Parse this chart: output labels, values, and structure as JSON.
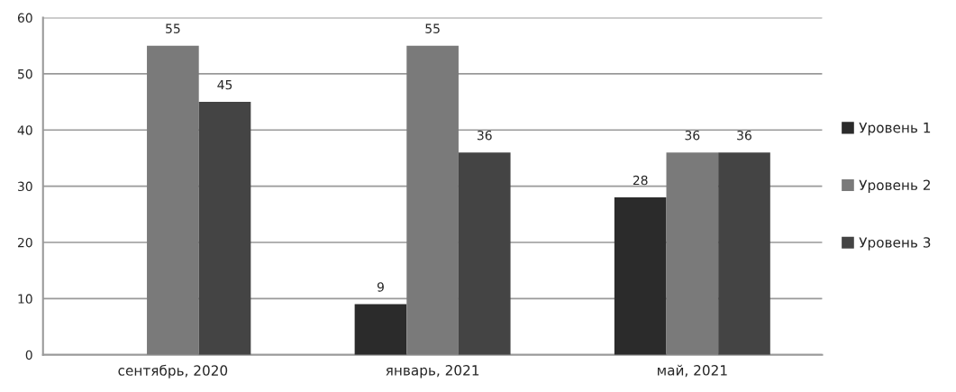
{
  "chart_data": {
    "type": "bar",
    "categories": [
      "сентябрь, 2020",
      "январь, 2021",
      "май, 2021"
    ],
    "series": [
      {
        "name": "Уровень 1",
        "color": "#2b2b2b",
        "values": [
          null,
          9,
          28
        ]
      },
      {
        "name": "Уровень 2",
        "color": "#7a7a7a",
        "values": [
          55,
          55,
          36
        ]
      },
      {
        "name": "Уровень 3",
        "color": "#444444",
        "values": [
          45,
          36,
          36
        ]
      }
    ],
    "ylim": [
      0,
      60
    ],
    "yticks": [
      0,
      10,
      20,
      30,
      40,
      50,
      60
    ],
    "grid": "y",
    "legend": "right",
    "data_labels": true
  }
}
